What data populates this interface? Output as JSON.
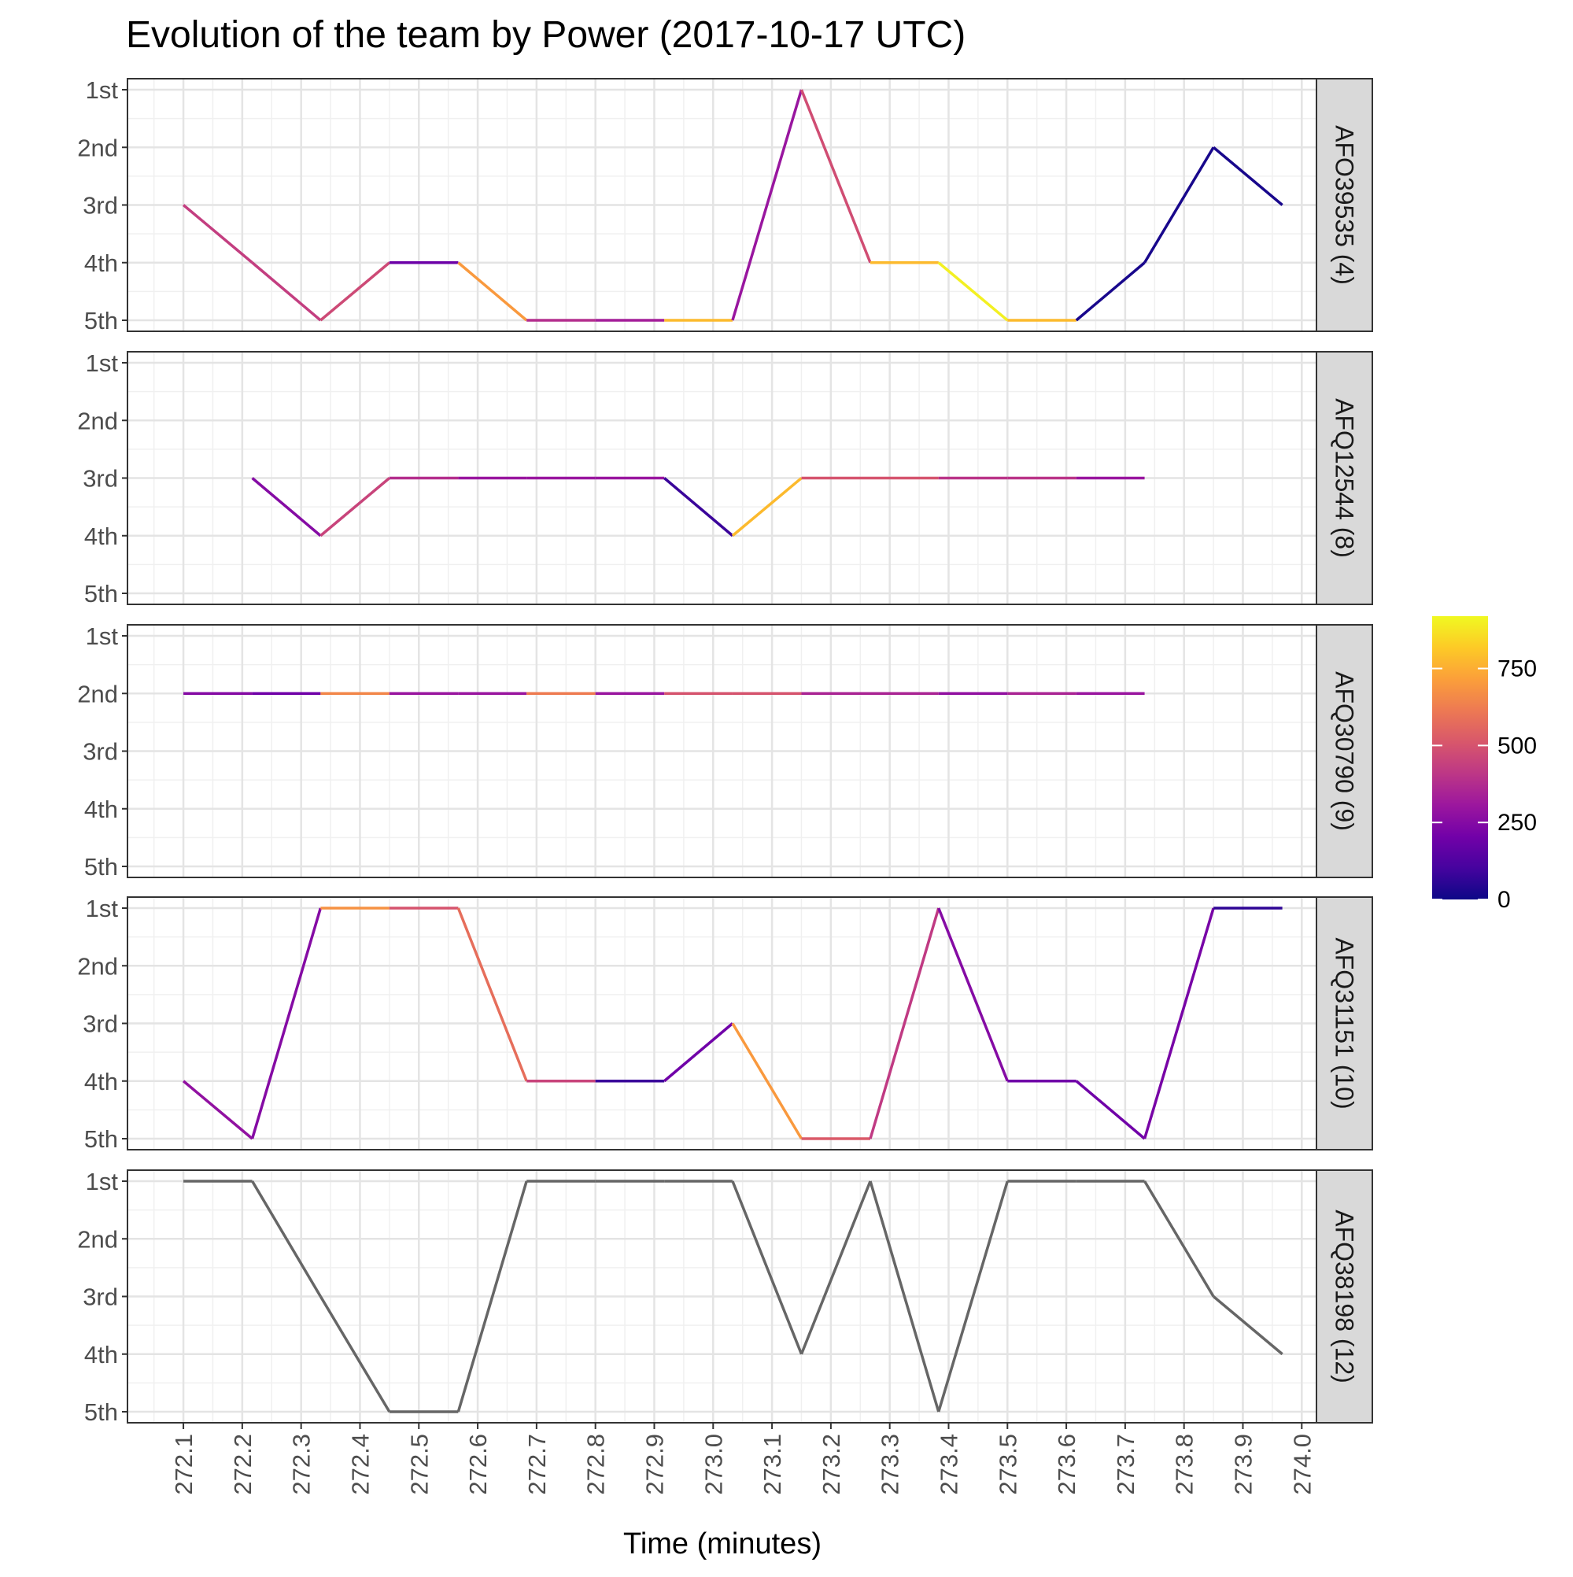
{
  "chart_data": {
    "type": "line",
    "title": "Evolution of the team by Power (2017-10-17 UTC)",
    "xlabel": "Time (minutes)",
    "ylabel": "",
    "x_ticks": [
      "272.1",
      "272.2",
      "272.3",
      "272.4",
      "272.5",
      "272.6",
      "272.7",
      "272.8",
      "272.9",
      "273.0",
      "273.1",
      "273.2",
      "273.3",
      "273.4",
      "273.5",
      "273.6",
      "273.7",
      "273.8",
      "273.9",
      "274.0"
    ],
    "xlim": [
      272.005,
      274.025
    ],
    "y_categories": [
      "1st",
      "2nd",
      "3rd",
      "4th",
      "5th"
    ],
    "ylim": [
      1,
      5
    ],
    "grid": true,
    "legend": {
      "position": "right",
      "type": "colorbar",
      "palette": "plasma",
      "range": [
        0,
        920
      ],
      "ticks": [
        "0",
        "250",
        "500",
        "750"
      ],
      "colors": [
        "#0d0887",
        "#46039f",
        "#7201a8",
        "#9c179e",
        "#bd3786",
        "#d8576b",
        "#ed7953",
        "#fb9f3a",
        "#fdca26",
        "#f0f921"
      ]
    },
    "x": [
      272.1,
      272.217,
      272.333,
      272.45,
      272.567,
      272.683,
      272.8,
      272.917,
      273.033,
      273.15,
      273.267,
      273.383,
      273.5,
      273.617,
      273.733,
      273.85,
      273.967
    ],
    "facets": [
      {
        "label": "AFO39535 (4)",
        "ranks": [
          3,
          4,
          5,
          4,
          4,
          5,
          5,
          5,
          5,
          1,
          4,
          4,
          5,
          5,
          4,
          2,
          3
        ],
        "power": [
          430,
          430,
          470,
          190,
          700,
          380,
          330,
          780,
          300,
          480,
          780,
          900,
          780,
          20,
          20,
          20
        ]
      },
      {
        "label": "AFQ12544 (8)",
        "ranks": [
          null,
          3,
          4,
          3,
          3,
          3,
          3,
          3,
          4,
          3,
          3,
          3,
          3,
          3,
          3,
          null,
          null
        ],
        "power": [
          null,
          250,
          450,
          380,
          300,
          300,
          300,
          80,
          780,
          500,
          500,
          400,
          400,
          300,
          null,
          null
        ]
      },
      {
        "label": "AFQ30790 (9)",
        "ranks": [
          2,
          2,
          2,
          2,
          2,
          2,
          2,
          2,
          2,
          2,
          2,
          2,
          2,
          2,
          2,
          null,
          null
        ],
        "power": [
          250,
          200,
          650,
          300,
          300,
          620,
          300,
          500,
          500,
          350,
          350,
          280,
          350,
          300,
          null,
          null
        ]
      },
      {
        "label": "AFQ31151 (10)",
        "ranks": [
          4,
          5,
          1,
          1,
          1,
          4,
          4,
          4,
          3,
          5,
          5,
          1,
          4,
          4,
          5,
          1,
          1
        ],
        "power": [
          280,
          250,
          680,
          500,
          580,
          450,
          80,
          200,
          700,
          520,
          420,
          250,
          200,
          200,
          220,
          60
        ]
      },
      {
        "label": "AFQ38198 (12)",
        "ranks": [
          1,
          1,
          3,
          5,
          5,
          1,
          1,
          1,
          1,
          4,
          1,
          5,
          1,
          1,
          1,
          3,
          4
        ],
        "power": null
      }
    ]
  }
}
